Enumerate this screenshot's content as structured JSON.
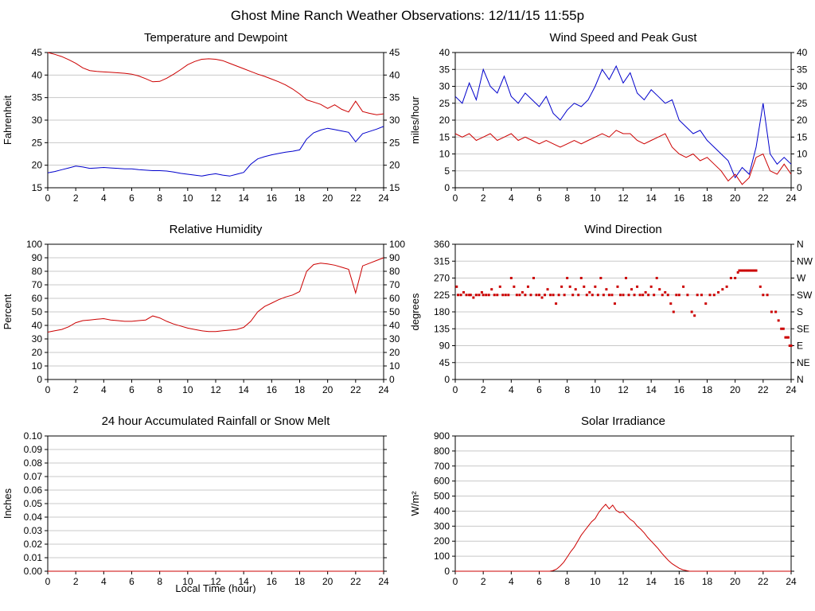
{
  "page": {
    "title": "Ghost Mine Ranch Weather Observations: 12/11/15 11:55p"
  },
  "colors": {
    "red": "#cc0000",
    "blue": "#0000cc",
    "grid": "#c8c8c8",
    "axis": "#000000"
  },
  "chart_data": [
    {
      "id": "temperature-dewpoint",
      "type": "line",
      "title": "Temperature and Dewpoint",
      "ylabel": "Fahrenheit",
      "xlim": [
        0,
        24
      ],
      "xtick_step": 2,
      "ylim": [
        15,
        45
      ],
      "ytick_step": 5,
      "ytick_decimals": 0,
      "right_labels": "mirror",
      "series": [
        {
          "name": "Temperature",
          "color": "#cc0000",
          "x_start": 0,
          "x_step": 0.5,
          "values": [
            45.0,
            44.6,
            44.1,
            43.4,
            42.6,
            41.6,
            41.0,
            40.8,
            40.7,
            40.6,
            40.5,
            40.4,
            40.2,
            39.8,
            39.2,
            38.5,
            38.6,
            39.3,
            40.2,
            41.2,
            42.3,
            43.0,
            43.5,
            43.6,
            43.5,
            43.2,
            42.6,
            42.0,
            41.4,
            40.8,
            40.2,
            39.7,
            39.1,
            38.5,
            37.8,
            36.9,
            35.8,
            34.5,
            34.0,
            33.5,
            32.6,
            33.4,
            32.4,
            31.8,
            34.2,
            31.9,
            31.5,
            31.2,
            31.4
          ]
        },
        {
          "name": "Dewpoint",
          "color": "#0000cc",
          "x_start": 0,
          "x_step": 0.5,
          "values": [
            18.3,
            18.6,
            19.0,
            19.4,
            19.8,
            19.6,
            19.3,
            19.4,
            19.5,
            19.4,
            19.3,
            19.2,
            19.2,
            19.0,
            18.9,
            18.8,
            18.8,
            18.7,
            18.5,
            18.2,
            18.0,
            17.8,
            17.6,
            17.9,
            18.1,
            17.8,
            17.6,
            18.0,
            18.4,
            20.2,
            21.4,
            21.9,
            22.3,
            22.6,
            22.9,
            23.1,
            23.4,
            25.8,
            27.2,
            27.8,
            28.2,
            27.9,
            27.6,
            27.3,
            25.2,
            27.0,
            27.5,
            28.0,
            28.6
          ]
        }
      ]
    },
    {
      "id": "wind-speed-gust",
      "type": "line",
      "title": "Wind Speed and Peak Gust",
      "ylabel": "miles/hour",
      "xlim": [
        0,
        24
      ],
      "xtick_step": 2,
      "ylim": [
        0,
        40
      ],
      "ytick_step": 5,
      "ytick_decimals": 0,
      "right_labels": "mirror",
      "series": [
        {
          "name": "Peak Gust",
          "color": "#0000cc",
          "x_start": 0,
          "x_step": 0.5,
          "values": [
            27,
            25,
            31,
            26,
            35,
            30,
            28,
            33,
            27,
            25,
            28,
            26,
            24,
            27,
            22,
            20,
            23,
            25,
            24,
            26,
            30,
            35,
            32,
            36,
            31,
            34,
            28,
            26,
            29,
            27,
            25,
            26,
            20,
            18,
            16,
            17,
            14,
            12,
            10,
            8,
            3,
            6,
            4,
            12,
            25,
            10,
            7,
            9,
            7
          ]
        },
        {
          "name": "Wind Speed",
          "color": "#cc0000",
          "x_start": 0,
          "x_step": 0.5,
          "values": [
            16,
            15,
            16,
            14,
            15,
            16,
            14,
            15,
            16,
            14,
            15,
            14,
            13,
            14,
            13,
            12,
            13,
            14,
            13,
            14,
            15,
            16,
            15,
            17,
            16,
            16,
            14,
            13,
            14,
            15,
            16,
            12,
            10,
            9,
            10,
            8,
            9,
            7,
            5,
            2,
            4,
            1,
            3,
            9,
            10,
            5,
            4,
            7,
            4
          ]
        }
      ]
    },
    {
      "id": "relative-humidity",
      "type": "line",
      "title": "Relative Humidity",
      "ylabel": "Percent",
      "xlim": [
        0,
        24
      ],
      "xtick_step": 2,
      "ylim": [
        0,
        100
      ],
      "ytick_step": 10,
      "ytick_decimals": 0,
      "right_labels": "mirror",
      "series": [
        {
          "name": "Relative Humidity",
          "color": "#cc0000",
          "x_start": 0,
          "x_step": 0.5,
          "values": [
            35,
            36,
            37,
            39,
            42,
            43.5,
            44,
            44.5,
            45,
            44,
            43.5,
            43,
            43,
            43.5,
            44,
            47,
            45.5,
            43,
            41,
            39.5,
            38,
            37,
            36,
            35.5,
            35.5,
            36,
            36.5,
            37,
            38.5,
            43,
            50,
            54,
            56.5,
            59,
            61,
            62.5,
            65,
            80,
            85,
            86,
            85.5,
            84.5,
            83,
            81.5,
            64,
            84,
            86,
            88,
            90
          ]
        }
      ]
    },
    {
      "id": "wind-direction",
      "type": "scatter",
      "title": "Wind Direction",
      "ylabel": "degrees",
      "xlim": [
        0,
        24
      ],
      "xtick_step": 2,
      "ylim": [
        0,
        360
      ],
      "ytick_step": 45,
      "ytick_decimals": 0,
      "right_labels": [
        "N",
        "NE",
        "E",
        "SE",
        "S",
        "SW",
        "W",
        "NW",
        "N"
      ],
      "series": [
        {
          "name": "Wind Direction",
          "color": "#cc0000",
          "points": [
            [
              0.1,
              247
            ],
            [
              0.2,
              225
            ],
            [
              0.4,
              225
            ],
            [
              0.6,
              232
            ],
            [
              0.8,
              225
            ],
            [
              1.0,
              225
            ],
            [
              1.1,
              225
            ],
            [
              1.3,
              218
            ],
            [
              1.5,
              225
            ],
            [
              1.7,
              225
            ],
            [
              1.9,
              232
            ],
            [
              2.0,
              225
            ],
            [
              2.2,
              225
            ],
            [
              2.4,
              225
            ],
            [
              2.6,
              240
            ],
            [
              2.8,
              225
            ],
            [
              3.0,
              225
            ],
            [
              3.2,
              247
            ],
            [
              3.4,
              225
            ],
            [
              3.6,
              225
            ],
            [
              3.8,
              225
            ],
            [
              4.0,
              270
            ],
            [
              4.2,
              247
            ],
            [
              4.4,
              225
            ],
            [
              4.6,
              225
            ],
            [
              4.8,
              232
            ],
            [
              5.0,
              225
            ],
            [
              5.2,
              247
            ],
            [
              5.4,
              225
            ],
            [
              5.6,
              270
            ],
            [
              5.8,
              225
            ],
            [
              6.0,
              225
            ],
            [
              6.2,
              218
            ],
            [
              6.4,
              225
            ],
            [
              6.6,
              240
            ],
            [
              6.8,
              225
            ],
            [
              7.0,
              225
            ],
            [
              7.2,
              202
            ],
            [
              7.4,
              225
            ],
            [
              7.6,
              247
            ],
            [
              7.8,
              225
            ],
            [
              8.0,
              270
            ],
            [
              8.2,
              247
            ],
            [
              8.4,
              225
            ],
            [
              8.6,
              240
            ],
            [
              8.8,
              225
            ],
            [
              9.0,
              270
            ],
            [
              9.2,
              247
            ],
            [
              9.4,
              225
            ],
            [
              9.6,
              232
            ],
            [
              9.8,
              225
            ],
            [
              10.0,
              247
            ],
            [
              10.2,
              225
            ],
            [
              10.4,
              270
            ],
            [
              10.6,
              225
            ],
            [
              10.8,
              240
            ],
            [
              11.0,
              225
            ],
            [
              11.2,
              225
            ],
            [
              11.4,
              202
            ],
            [
              11.6,
              247
            ],
            [
              11.8,
              225
            ],
            [
              12.0,
              225
            ],
            [
              12.2,
              270
            ],
            [
              12.4,
              225
            ],
            [
              12.6,
              240
            ],
            [
              12.8,
              225
            ],
            [
              13.0,
              247
            ],
            [
              13.2,
              225
            ],
            [
              13.4,
              225
            ],
            [
              13.6,
              232
            ],
            [
              13.8,
              225
            ],
            [
              14.0,
              247
            ],
            [
              14.2,
              225
            ],
            [
              14.4,
              270
            ],
            [
              14.6,
              240
            ],
            [
              14.8,
              225
            ],
            [
              15.0,
              232
            ],
            [
              15.2,
              225
            ],
            [
              15.4,
              202
            ],
            [
              15.6,
              180
            ],
            [
              15.8,
              225
            ],
            [
              16.0,
              225
            ],
            [
              16.3,
              247
            ],
            [
              16.6,
              225
            ],
            [
              16.9,
              180
            ],
            [
              17.1,
              170
            ],
            [
              17.3,
              225
            ],
            [
              17.6,
              225
            ],
            [
              17.9,
              202
            ],
            [
              18.2,
              225
            ],
            [
              18.5,
              225
            ],
            [
              18.8,
              232
            ],
            [
              19.1,
              240
            ],
            [
              19.4,
              247
            ],
            [
              19.7,
              270
            ],
            [
              20.0,
              270
            ],
            [
              20.2,
              285
            ],
            [
              20.3,
              290
            ],
            [
              20.45,
              290
            ],
            [
              20.6,
              290
            ],
            [
              20.75,
              290
            ],
            [
              20.9,
              290
            ],
            [
              21.05,
              290
            ],
            [
              21.2,
              290
            ],
            [
              21.35,
              290
            ],
            [
              21.5,
              290
            ],
            [
              21.8,
              247
            ],
            [
              22.0,
              225
            ],
            [
              22.3,
              225
            ],
            [
              22.6,
              180
            ],
            [
              22.9,
              180
            ],
            [
              23.1,
              157
            ],
            [
              23.3,
              135
            ],
            [
              23.45,
              135
            ],
            [
              23.6,
              112
            ],
            [
              23.7,
              112
            ],
            [
              23.8,
              112
            ],
            [
              23.9,
              90
            ],
            [
              24.0,
              90
            ]
          ]
        }
      ]
    },
    {
      "id": "rainfall",
      "type": "line",
      "title": "24 hour Accumulated Rainfall or Snow Melt",
      "ylabel": "Inches",
      "xlabel": "Local Time (hour)",
      "xlim": [
        0,
        24
      ],
      "xtick_step": 2,
      "ylim": [
        0,
        0.1
      ],
      "ytick_step": 0.01,
      "ytick_decimals": 2,
      "right_labels": null,
      "series": [
        {
          "name": "Accumulated Rainfall",
          "color": "#cc0000",
          "x_start": 0,
          "x_step": 1,
          "values": [
            0,
            0,
            0,
            0,
            0,
            0,
            0,
            0,
            0,
            0,
            0,
            0,
            0,
            0,
            0,
            0,
            0,
            0,
            0,
            0,
            0,
            0,
            0,
            0,
            0
          ]
        }
      ]
    },
    {
      "id": "solar-irradiance",
      "type": "line",
      "title": "Solar Irradiance",
      "ylabel": "W/m²",
      "xlim": [
        0,
        24
      ],
      "xtick_step": 2,
      "ylim": [
        0,
        900
      ],
      "ytick_step": 100,
      "ytick_decimals": 0,
      "right_labels": null,
      "series": [
        {
          "name": "Solar Irradiance",
          "color": "#cc0000",
          "x_start": 0,
          "x_step": 0.25,
          "values": [
            0,
            0,
            0,
            0,
            0,
            0,
            0,
            0,
            0,
            0,
            0,
            0,
            0,
            0,
            0,
            0,
            0,
            0,
            0,
            0,
            0,
            0,
            0,
            0,
            0,
            0,
            0,
            0,
            5,
            15,
            35,
            60,
            95,
            130,
            160,
            200,
            240,
            270,
            300,
            330,
            350,
            390,
            420,
            445,
            415,
            440,
            405,
            390,
            395,
            370,
            345,
            330,
            300,
            280,
            255,
            225,
            200,
            175,
            150,
            120,
            95,
            70,
            50,
            35,
            20,
            10,
            5,
            0,
            0,
            0,
            0,
            0,
            0,
            0,
            0,
            0,
            0,
            0,
            0,
            0,
            0,
            0,
            0,
            0,
            0,
            0,
            0,
            0,
            0,
            0,
            0,
            0,
            0,
            0,
            0,
            0,
            0
          ]
        }
      ]
    }
  ]
}
